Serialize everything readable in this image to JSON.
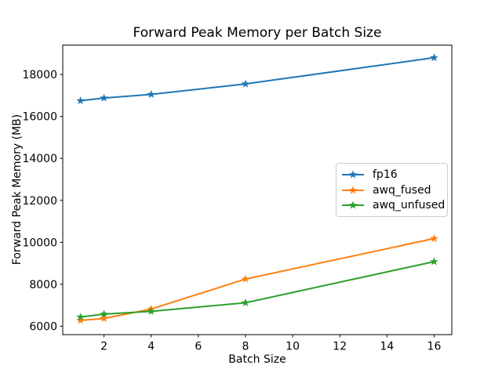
{
  "chart_data": {
    "type": "line",
    "title": "Forward Peak Memory per Batch Size",
    "xlabel": "Batch Size",
    "ylabel": "Forward Peak Memory (MB)",
    "x": [
      1,
      2,
      4,
      8,
      16
    ],
    "series": [
      {
        "name": "fp16",
        "color": "#1f77b4",
        "marker": "star",
        "values": [
          16750,
          16880,
          17050,
          17550,
          18800
        ]
      },
      {
        "name": "awq_fused",
        "color": "#ff7f0e",
        "marker": "star",
        "values": [
          6280,
          6370,
          6820,
          8250,
          10180
        ]
      },
      {
        "name": "awq_unfused",
        "color": "#2ca02c",
        "marker": "star",
        "values": [
          6440,
          6580,
          6710,
          7120,
          9080
        ]
      }
    ],
    "xticks": [
      2,
      4,
      6,
      8,
      10,
      12,
      14,
      16
    ],
    "yticks": [
      6000,
      8000,
      10000,
      12000,
      14000,
      16000,
      18000
    ],
    "xlim": [
      0.25,
      16.75
    ],
    "ylim": [
      5600,
      19400
    ],
    "grid": false,
    "legend_position": "center right",
    "spine_color": "#000000",
    "tick_label_color": "#000000",
    "background_color": "#ffffff"
  }
}
